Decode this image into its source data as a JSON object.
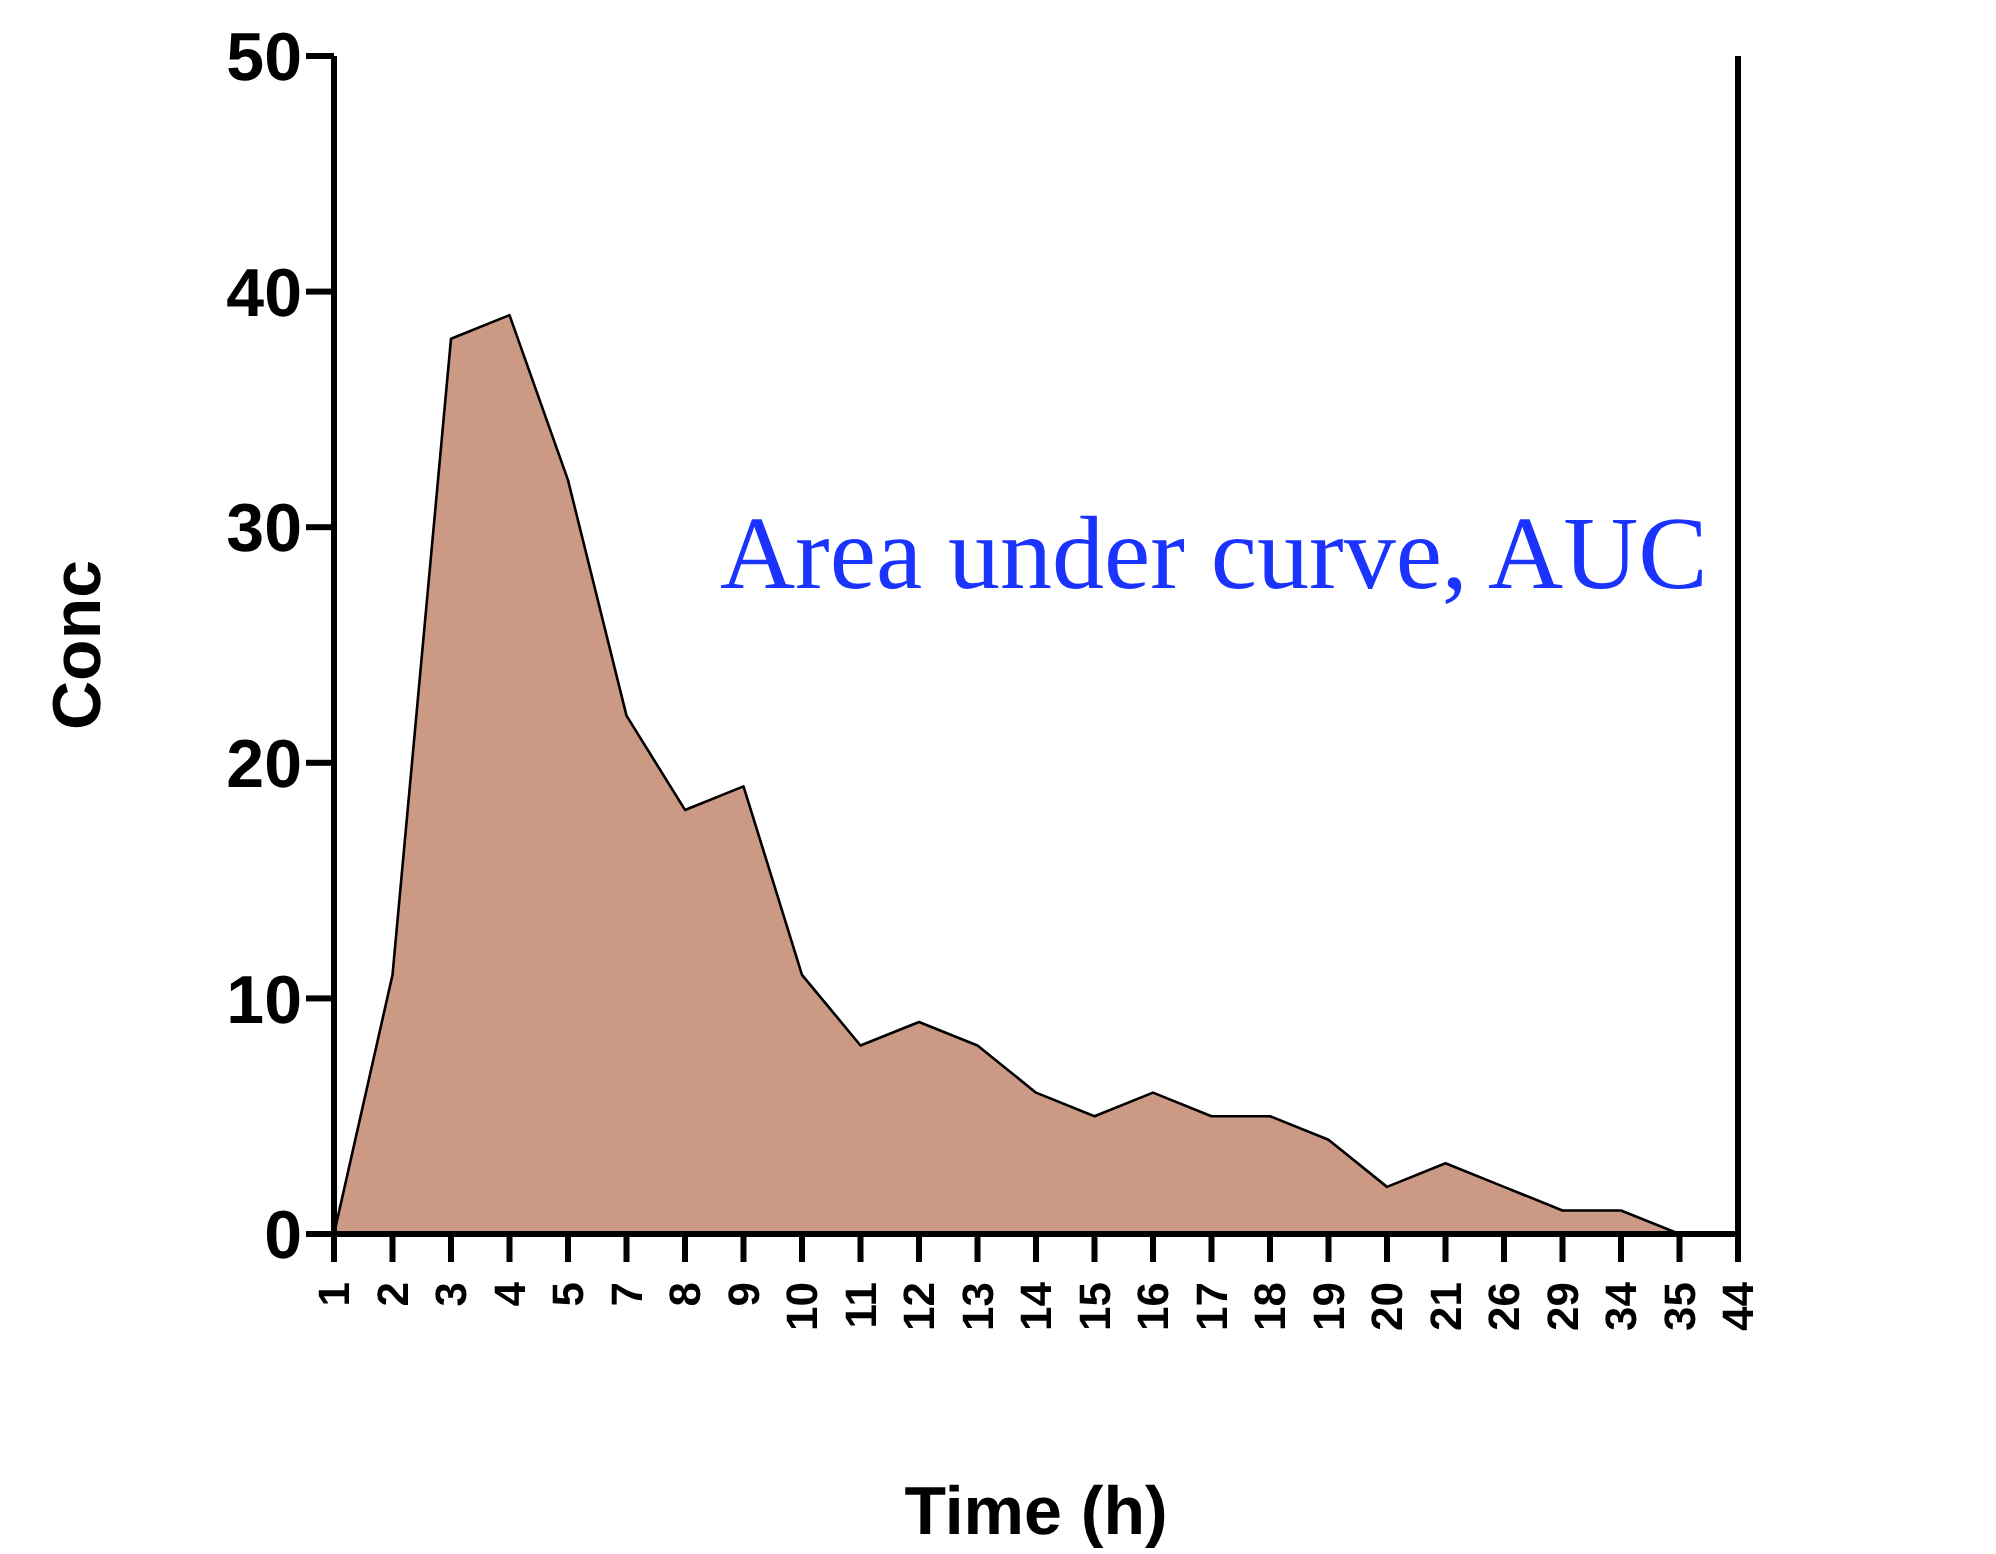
{
  "chart_data": {
    "type": "area",
    "xlabel": "Time (h)",
    "ylabel": "Conc",
    "categories": [
      "1",
      "2",
      "3",
      "4",
      "5",
      "7",
      "8",
      "9",
      "10",
      "11",
      "12",
      "13",
      "14",
      "15",
      "16",
      "17",
      "18",
      "19",
      "20",
      "21",
      "26",
      "29",
      "34",
      "35",
      "44"
    ],
    "series": [
      {
        "color": "#cc9985",
        "values": [
          0,
          11,
          38,
          39,
          32,
          22,
          18,
          19,
          11,
          8,
          9,
          8,
          6,
          5,
          6,
          5,
          5,
          4,
          2,
          3,
          2,
          1,
          1,
          0,
          null
        ]
      }
    ],
    "ylim": [
      0,
      50
    ],
    "yticks": [
      0,
      10,
      20,
      30,
      40,
      50
    ],
    "annotations": [
      "Area under curve, AUC"
    ]
  }
}
